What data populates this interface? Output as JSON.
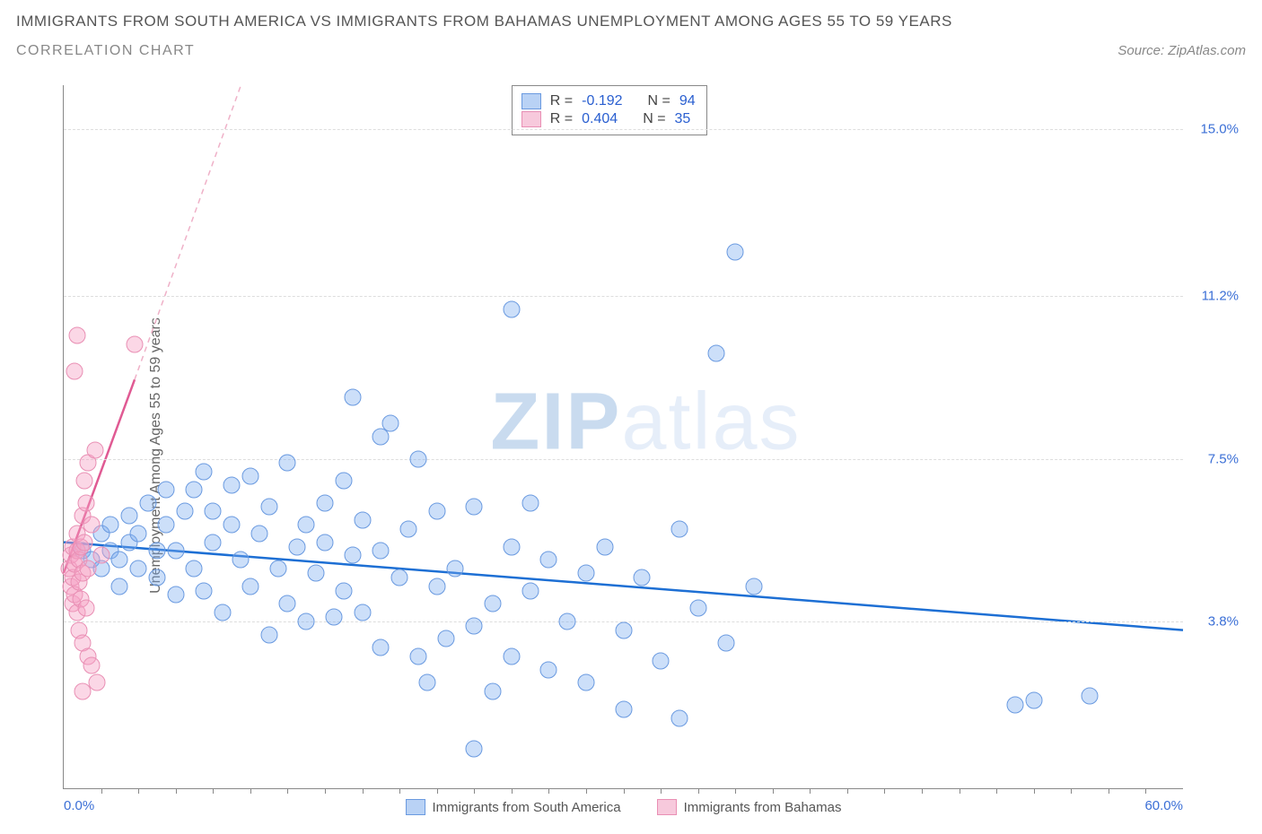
{
  "header": {
    "title": "IMMIGRANTS FROM SOUTH AMERICA VS IMMIGRANTS FROM BAHAMAS UNEMPLOYMENT AMONG AGES 55 TO 59 YEARS",
    "subtitle": "CORRELATION CHART",
    "source_prefix": "Source: ",
    "source_name": "ZipAtlas.com"
  },
  "chart": {
    "type": "scatter",
    "ylabel": "Unemployment Among Ages 55 to 59 years",
    "xlim": [
      0,
      60
    ],
    "ylim": [
      0,
      16
    ],
    "x_ticks": [
      {
        "v": 0.0,
        "label": "0.0%"
      },
      {
        "v": 60.0,
        "label": "60.0%"
      }
    ],
    "x_minor_ticks": [
      2,
      4,
      6,
      8,
      10,
      12,
      14,
      16,
      18,
      20,
      22,
      24,
      26,
      28,
      30,
      32,
      34,
      36,
      38,
      40,
      42,
      44,
      46,
      48,
      50,
      52,
      54,
      56,
      58
    ],
    "y_ticks": [
      {
        "v": 3.8,
        "label": "3.8%"
      },
      {
        "v": 7.5,
        "label": "7.5%"
      },
      {
        "v": 11.2,
        "label": "11.2%"
      },
      {
        "v": 15.0,
        "label": "15.0%"
      }
    ],
    "background_color": "#ffffff",
    "grid_color": "#dddddd",
    "series": [
      {
        "name": "Immigrants from South America",
        "color_fill": "rgba(120,170,240,0.38)",
        "color_stroke": "#6a9ae0",
        "swatch_fill": "#b9d2f5",
        "swatch_stroke": "#6a9ae0",
        "R": "-0.192",
        "N": "94",
        "trend": {
          "x1": 0,
          "y1": 5.6,
          "x2": 60,
          "y2": 3.6,
          "stroke": "#1d6fd4",
          "width": 2.5,
          "dash": ""
        },
        "points": [
          [
            1,
            5.4
          ],
          [
            1.5,
            5.2
          ],
          [
            2,
            5.8
          ],
          [
            2,
            5.0
          ],
          [
            2.5,
            5.4
          ],
          [
            2.5,
            6.0
          ],
          [
            3,
            5.2
          ],
          [
            3,
            4.6
          ],
          [
            3.5,
            5.6
          ],
          [
            3.5,
            6.2
          ],
          [
            4,
            5.0
          ],
          [
            4,
            5.8
          ],
          [
            4.5,
            6.5
          ],
          [
            5,
            4.8
          ],
          [
            5,
            5.4
          ],
          [
            5.5,
            6.0
          ],
          [
            5.5,
            6.8
          ],
          [
            6,
            4.4
          ],
          [
            6,
            5.4
          ],
          [
            6.5,
            6.3
          ],
          [
            7,
            5.0
          ],
          [
            7,
            6.8
          ],
          [
            7.5,
            4.5
          ],
          [
            7.5,
            7.2
          ],
          [
            8,
            5.6
          ],
          [
            8,
            6.3
          ],
          [
            8.5,
            4.0
          ],
          [
            9,
            6.0
          ],
          [
            9,
            6.9
          ],
          [
            9.5,
            5.2
          ],
          [
            10,
            4.6
          ],
          [
            10,
            7.1
          ],
          [
            10.5,
            5.8
          ],
          [
            11,
            3.5
          ],
          [
            11,
            6.4
          ],
          [
            11.5,
            5.0
          ],
          [
            12,
            4.2
          ],
          [
            12,
            7.4
          ],
          [
            12.5,
            5.5
          ],
          [
            13,
            6.0
          ],
          [
            13,
            3.8
          ],
          [
            13.5,
            4.9
          ],
          [
            14,
            6.5
          ],
          [
            14,
            5.6
          ],
          [
            14.5,
            3.9
          ],
          [
            15,
            4.5
          ],
          [
            15,
            7.0
          ],
          [
            15.5,
            5.3
          ],
          [
            15.5,
            8.9
          ],
          [
            16,
            4.0
          ],
          [
            16,
            6.1
          ],
          [
            17,
            3.2
          ],
          [
            17,
            5.4
          ],
          [
            17,
            8.0
          ],
          [
            17.5,
            8.3
          ],
          [
            18,
            4.8
          ],
          [
            18.5,
            5.9
          ],
          [
            19,
            7.5
          ],
          [
            19,
            3.0
          ],
          [
            19.5,
            2.4
          ],
          [
            20,
            4.6
          ],
          [
            20,
            6.3
          ],
          [
            20.5,
            3.4
          ],
          [
            21,
            5.0
          ],
          [
            22,
            3.7
          ],
          [
            22,
            6.4
          ],
          [
            22,
            0.9
          ],
          [
            23,
            4.2
          ],
          [
            23,
            2.2
          ],
          [
            24,
            5.5
          ],
          [
            24,
            3.0
          ],
          [
            24,
            10.9
          ],
          [
            25,
            4.5
          ],
          [
            25,
            6.5
          ],
          [
            26,
            2.7
          ],
          [
            26,
            5.2
          ],
          [
            27,
            3.8
          ],
          [
            28,
            4.9
          ],
          [
            28,
            2.4
          ],
          [
            29,
            5.5
          ],
          [
            30,
            3.6
          ],
          [
            30,
            1.8
          ],
          [
            31,
            4.8
          ],
          [
            32,
            2.9
          ],
          [
            33,
            5.9
          ],
          [
            33,
            1.6
          ],
          [
            34,
            4.1
          ],
          [
            35,
            9.9
          ],
          [
            35.5,
            3.3
          ],
          [
            36,
            12.2
          ],
          [
            37,
            4.6
          ],
          [
            51,
            1.9
          ],
          [
            52,
            2.0
          ],
          [
            55,
            2.1
          ]
        ]
      },
      {
        "name": "Immigrants from Bahamas",
        "color_fill": "rgba(245,160,195,0.42)",
        "color_stroke": "#e98fb4",
        "swatch_fill": "#f7c9dc",
        "swatch_stroke": "#e98fb4",
        "R": "0.404",
        "N": "35",
        "trend_solid": {
          "x1": 0,
          "y1": 4.9,
          "x2": 3.8,
          "y2": 9.3,
          "stroke": "#e05a93",
          "width": 2.5
        },
        "trend_dash": {
          "x1": 3.8,
          "y1": 9.3,
          "x2": 9.5,
          "y2": 16.0,
          "stroke": "#efb1c8",
          "width": 1.5,
          "dash": "6 5"
        },
        "points": [
          [
            0.3,
            5.0
          ],
          [
            0.4,
            4.6
          ],
          [
            0.4,
            5.3
          ],
          [
            0.5,
            4.2
          ],
          [
            0.5,
            4.8
          ],
          [
            0.5,
            5.5
          ],
          [
            0.6,
            5.1
          ],
          [
            0.6,
            4.4
          ],
          [
            0.7,
            5.4
          ],
          [
            0.7,
            4.0
          ],
          [
            0.7,
            5.8
          ],
          [
            0.8,
            4.7
          ],
          [
            0.8,
            5.2
          ],
          [
            0.8,
            3.6
          ],
          [
            0.9,
            5.5
          ],
          [
            0.9,
            4.3
          ],
          [
            1.0,
            6.2
          ],
          [
            1.0,
            4.9
          ],
          [
            1.0,
            3.3
          ],
          [
            1.1,
            5.6
          ],
          [
            1.1,
            7.0
          ],
          [
            1.2,
            4.1
          ],
          [
            1.2,
            6.5
          ],
          [
            1.3,
            3.0
          ],
          [
            1.3,
            5.0
          ],
          [
            1.3,
            7.4
          ],
          [
            1.5,
            6.0
          ],
          [
            1.5,
            2.8
          ],
          [
            1.7,
            7.7
          ],
          [
            1.8,
            2.4
          ],
          [
            2.0,
            5.3
          ],
          [
            0.6,
            9.5
          ],
          [
            0.7,
            10.3
          ],
          [
            3.8,
            10.1
          ],
          [
            1.0,
            2.2
          ]
        ]
      }
    ],
    "stats_legend": {
      "R_label": "R = ",
      "N_label": "N = "
    },
    "bottom_legend": [
      {
        "label": "Immigrants from South America",
        "fill": "#b9d2f5",
        "stroke": "#6a9ae0"
      },
      {
        "label": "Immigrants from Bahamas",
        "fill": "#f7c9dc",
        "stroke": "#e98fb4"
      }
    ],
    "watermark": {
      "strong": "ZIP",
      "light": "atlas",
      "strong_color": "#c9dbef",
      "light_color": "#e6eef9"
    }
  }
}
